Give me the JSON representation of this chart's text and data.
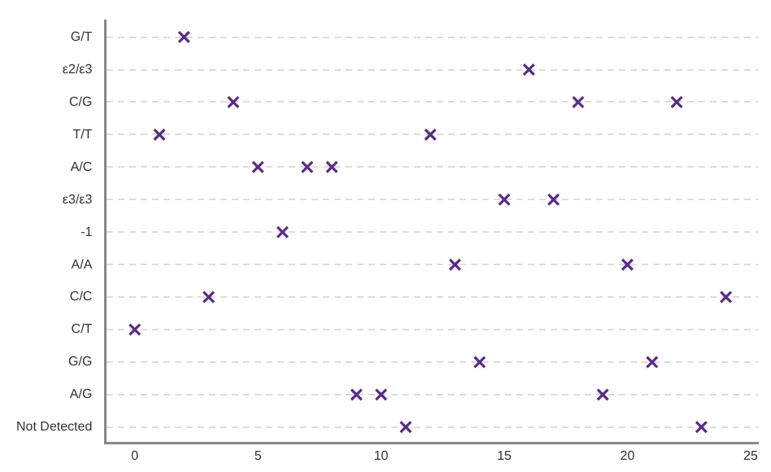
{
  "chart_data": {
    "type": "scatter",
    "orientation": "horizontal",
    "categories": [
      "G/T",
      "ε2/ε3",
      "C/G",
      "T/T",
      "A/C",
      "ε3/ε3",
      "-1",
      "A/A",
      "C/C",
      "C/T",
      "G/G",
      "A/G",
      "Not Detected"
    ],
    "series": [
      {
        "color": "#5b2a86",
        "values": [
          2,
          16,
          4,
          1,
          5,
          15,
          6,
          13,
          3,
          0,
          14,
          9,
          11
        ]
      },
      {
        "color": "#5b2a86",
        "values": [
          null,
          null,
          18,
          12,
          7,
          17,
          null,
          20,
          24,
          null,
          21,
          10,
          23
        ]
      },
      {
        "color": "#5b2a86",
        "values": [
          null,
          null,
          22,
          null,
          8,
          null,
          null,
          null,
          null,
          null,
          null,
          19,
          null
        ]
      }
    ],
    "xlim": [
      -1.2,
      25.3
    ],
    "xticks": [
      0,
      5,
      10,
      15,
      20,
      25
    ],
    "grid": "y",
    "marker": "cross"
  }
}
